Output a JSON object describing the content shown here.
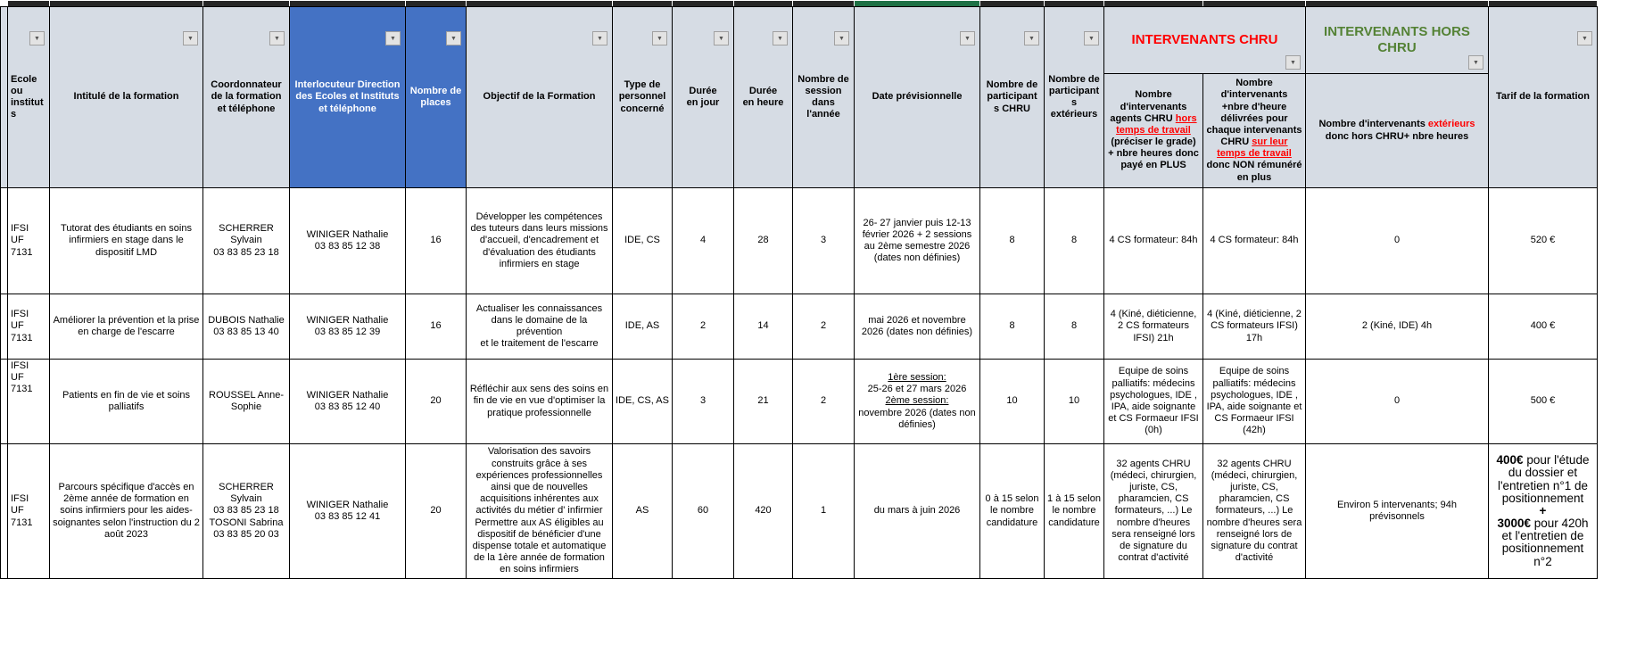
{
  "ui": {
    "filter_icon": "▼"
  },
  "colors": {
    "blue_header": "#4472C4",
    "header_bg": "#D6DCE4",
    "red_text": "#FF0000",
    "green_text": "#548235",
    "strip_dark": "#262626",
    "strip_green": "#1E7145"
  },
  "header": {
    "ecole": "Ecole ou instituts",
    "intitule": "Intitulé de la formation",
    "coordonnateur": "Coordonnateur de la formation et téléphone",
    "interlocuteur": "Interlocuteur Direction des Ecoles et Instituts et téléphone",
    "places": "Nombre de places",
    "objectif": "Objectif de la Formation",
    "type_personnel": "Type de personnel concerné",
    "duree_jour": "Durée\nen jour",
    "duree_heure": "Durée\nen heure",
    "sessions": "Nombre de session dans l'année",
    "date": "Date prévisionnelle",
    "participants_chru": "Nombre de\nparticipant\ns  CHRU",
    "participants_ext": "Nombre de\nparticipant\ns\nextérieurs",
    "groupe_chru": "INTERVENANTS CHRU",
    "groupe_hors_chru": "INTERVENANTS HORS CHRU",
    "interv_chru_paye_rich": [
      {
        "t": "Nombre d'intervenants agents CHRU "
      },
      {
        "t": "hors temps de travail",
        "cls": "red u"
      },
      {
        "t": " (préciser le grade) + nbre heures donc payé en PLUS"
      }
    ],
    "interv_chru_temps_rich": [
      {
        "t": "Nombre d'intervenants +nbre d'heure délivrées pour chaque intervenants CHRU "
      },
      {
        "t": "sur leur temps de travail",
        "cls": "red u"
      },
      {
        "t": " donc NON rémunéré en plus"
      }
    ],
    "interv_ext_rich": [
      {
        "t": "Nombre d'intervenants "
      },
      {
        "t": "extérieurs",
        "cls": "red"
      },
      {
        "t": " donc hors CHRU+  nbre heures"
      }
    ],
    "tarif": "Tarif de la formation"
  },
  "rows": [
    {
      "ecole": "IFSI\nUF 7131",
      "intitule": "Tutorat des étudiants en soins infirmiers en stage dans le dispositif LMD",
      "coordonnateur": "SCHERRER Sylvain\n03 83 85 23 18",
      "interlocuteur": "WINIGER Nathalie\n03 83 85 12 38",
      "places": "16",
      "objectif": "Développer les compétences des tuteurs dans leurs missions d'accueil, d'encadrement et d'évaluation des étudiants infirmiers en stage",
      "type_personnel": "IDE, CS",
      "duree_jour": "4",
      "duree_heure": "28",
      "sessions": "3",
      "date": "26- 27 janvier puis 12-13 février 2026  + 2 sessions au 2ème semestre 2026 (dates non définies)",
      "participants_chru": "8",
      "participants_ext": "8",
      "interv_chru_paye": "4 CS formateur: 84h",
      "interv_chru_temps": "4 CS formateur: 84h",
      "interv_ext": "0",
      "tarif": "520 €"
    },
    {
      "ecole": "IFSI\nUF 7131",
      "intitule": "Améliorer la prévention et la prise en charge de l'escarre",
      "coordonnateur": "DUBOIS Nathalie\n03 83 85 13 40",
      "interlocuteur": "WINIGER Nathalie\n03 83 85 12 39",
      "places": "16",
      "objectif": "Actualiser  les connaissances dans le domaine de la prévention\net le traitement de l'escarre",
      "type_personnel": "IDE, AS",
      "duree_jour": "2",
      "duree_heure": "14",
      "sessions": "2",
      "date": "mai 2026  et novembre 2026 (dates non définies)",
      "participants_chru": "8",
      "participants_ext": "8",
      "interv_chru_paye": "4 (Kiné, diéticienne, 2 CS formateurs IFSI) 21h",
      "interv_chru_temps": "4 (Kiné, diéticienne, 2 CS formateurs IFSI) 17h",
      "interv_ext": "2 (Kiné, IDE) 4h",
      "tarif": "400 €"
    },
    {
      "ecole": "IFSI\nUF 7131",
      "intitule": "Patients en fin de vie et soins palliatifs",
      "coordonnateur": "ROUSSEL Anne-Sophie",
      "interlocuteur": "WINIGER Nathalie\n03 83 85 12 40",
      "places": "20",
      "objectif": "Réfléchir aux sens des soins en fin de vie en vue d'optimiser la pratique professionnelle",
      "type_personnel": "IDE, CS, AS",
      "duree_jour": "3",
      "duree_heure": "21",
      "sessions": "2",
      "date_rich": [
        {
          "t": "1ère session:",
          "cls": "u"
        },
        {
          "t": "\n25-26 et 27 mars 2026\n"
        },
        {
          "t": "2ème session:",
          "cls": "u"
        },
        {
          "t": "\nnovembre 2026 (dates non définies)"
        }
      ],
      "participants_chru": "10",
      "participants_ext": "10",
      "interv_chru_paye": "Equipe de soins palliatifs: médecins psychologues, IDE , IPA, aide soignante  et CS Formaeur IFSI (0h)",
      "interv_chru_temps": "Equipe de soins palliatifs: médecins psychologues, IDE , IPA, aide soignante  et CS Formaeur IFSI (42h)",
      "interv_ext": "0",
      "tarif": "500 €"
    },
    {
      "ecole": "IFSI\nUF 7131",
      "intitule": "Parcours spécifique d'accès en 2ème année de formation en soins infirmiers pour les aides-soignantes selon l'instruction du 2 août 2023",
      "coordonnateur": "SCHERRER Sylvain\n03 83 85 23 18\nTOSONI Sabrina\n03 83 85 20 03",
      "interlocuteur": "WINIGER Nathalie\n03 83 85 12 41",
      "places": "20",
      "objectif": "Valorisation des savoirs construits grâce à ses expériences professionnelles ainsi que de nouvelles acquisitions inhérentes aux activités du métier d' infirmier Permettre aux AS éligibles au dispositif de bénéficier d'une dispense totale et automatique de la 1ère année de formation en soins infirmiers",
      "type_personnel": "AS",
      "duree_jour": "60",
      "duree_heure": "420",
      "sessions": "1",
      "date": "du mars à juin 2026",
      "participants_chru": "0 à 15 selon le nombre candidature",
      "participants_ext": "1 à 15 selon le nombre candidature",
      "interv_chru_paye": "32 agents CHRU (médeci, chirurgien, juriste, CS, pharamcien, CS formateurs, ...)  Le nombre d'heures sera renseigné lors de signature du contrat d'activité",
      "interv_chru_temps": "32 agents CHRU (médeci, chirurgien, juriste, CS, pharamcien, CS formateurs, ...)  Le nombre d'heures sera renseigné lors de signature du contrat d'activité",
      "interv_ext": "Environ 5 intervenants;  94h prévisonnels",
      "tarif_rich": [
        {
          "t": "400€",
          "cls": "b"
        },
        {
          "t": " pour l'étude du dossier et l'entretien n°1 de positionnement\n"
        },
        {
          "t": "+",
          "cls": "b"
        },
        {
          "t": "\n"
        },
        {
          "t": "3000€",
          "cls": "b"
        },
        {
          "t": " pour 420h et l'entretien de positionnement n°2"
        }
      ]
    }
  ]
}
